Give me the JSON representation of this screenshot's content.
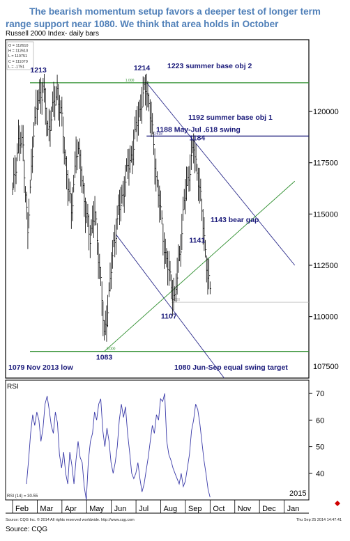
{
  "headline": {
    "line1": "The bearish momentum setup favors a deeper test of longer term",
    "line2": "range support near 1080. We think that area holds in October"
  },
  "subtitle": "Russell 2000 Index- daily bars",
  "footer": {
    "copyright": "Source: CQG Inc. © 2014 All rights reserved worldwide. http://www.cqg.com",
    "timestamp": "Thu Sep 25 2014 14:47:41",
    "source": "Source: CQG"
  },
  "colors": {
    "bars": "#000000",
    "trendline": "#2a2a8a",
    "channel": "#2f8f2f",
    "annotation": "#1a1a7a",
    "rsi": "#3a3aa8"
  },
  "chart_data": [
    {
      "type": "bar",
      "title": "Russell 2000 Index- daily bars",
      "x_categories": [
        "Feb",
        "Mar",
        "Apr",
        "May",
        "Jun",
        "Jul",
        "Aug",
        "Sep",
        "Oct",
        "Nov",
        "Dec",
        "Jan"
      ],
      "x_extra_label": "2015",
      "ylim": [
        1070,
        1235
      ],
      "y_ticks": [
        1100,
        1125,
        1150,
        1175,
        1200
      ],
      "y_tick_labels": [
        "110000",
        "112500",
        "115000",
        "117500",
        "120000"
      ],
      "y_bottom_label": "107500",
      "legend_box": [
        "O = 112610",
        "H = 112610",
        "L = 110751",
        "C = 111070",
        "L = -1751"
      ],
      "price_path": [
        {
          "d": 0,
          "p": 1160
        },
        {
          "d": 3,
          "p": 1175
        },
        {
          "d": 5,
          "p": 1185
        },
        {
          "d": 9,
          "p": 1183
        },
        {
          "d": 13,
          "p": 1140
        },
        {
          "d": 18,
          "p": 1192
        },
        {
          "d": 22,
          "p": 1205
        },
        {
          "d": 26,
          "p": 1212
        },
        {
          "d": 30,
          "p": 1190
        },
        {
          "d": 34,
          "p": 1200
        },
        {
          "d": 38,
          "p": 1210
        },
        {
          "d": 42,
          "p": 1195
        },
        {
          "d": 46,
          "p": 1170
        },
        {
          "d": 50,
          "p": 1150
        },
        {
          "d": 54,
          "p": 1180
        },
        {
          "d": 58,
          "p": 1175
        },
        {
          "d": 62,
          "p": 1150
        },
        {
          "d": 66,
          "p": 1140
        },
        {
          "d": 70,
          "p": 1150
        },
        {
          "d": 74,
          "p": 1125
        },
        {
          "d": 78,
          "p": 1090
        },
        {
          "d": 82,
          "p": 1110
        },
        {
          "d": 86,
          "p": 1135
        },
        {
          "d": 90,
          "p": 1150
        },
        {
          "d": 94,
          "p": 1160
        },
        {
          "d": 98,
          "p": 1172
        },
        {
          "d": 102,
          "p": 1180
        },
        {
          "d": 106,
          "p": 1195
        },
        {
          "d": 110,
          "p": 1205
        },
        {
          "d": 114,
          "p": 1212
        },
        {
          "d": 118,
          "p": 1195
        },
        {
          "d": 122,
          "p": 1170
        },
        {
          "d": 126,
          "p": 1150
        },
        {
          "d": 130,
          "p": 1130
        },
        {
          "d": 134,
          "p": 1118
        },
        {
          "d": 138,
          "p": 1108
        },
        {
          "d": 142,
          "p": 1130
        },
        {
          "d": 146,
          "p": 1155
        },
        {
          "d": 150,
          "p": 1170
        },
        {
          "d": 154,
          "p": 1182
        },
        {
          "d": 158,
          "p": 1168
        },
        {
          "d": 162,
          "p": 1145
        },
        {
          "d": 166,
          "p": 1120
        },
        {
          "d": 168,
          "p": 1111
        }
      ],
      "horizontal_levels": [
        {
          "value": 1214,
          "label": "1.000",
          "color": "#2f8f2f"
        },
        {
          "value": 1188,
          "label": "0.618",
          "color": "#1a1a7a"
        },
        {
          "value": 1107,
          "label": "0.000",
          "color": "#aaaaaa"
        },
        {
          "value": 1083,
          "label": "0.000",
          "color": "#2f8f2f"
        }
      ],
      "trendlines": [
        {
          "name": "upper-downtrend",
          "from": {
            "d": 114,
            "p": 1214
          },
          "to": {
            "d": 240,
            "p": 1125
          },
          "color": "#2a2a8a"
        },
        {
          "name": "lower-downtrend",
          "from": {
            "d": 88,
            "p": 1140
          },
          "to": {
            "d": 180,
            "p": 1070
          },
          "color": "#2a2a8a"
        },
        {
          "name": "rising-support",
          "from": {
            "d": 78,
            "p": 1083
          },
          "to": {
            "d": 240,
            "p": 1166
          },
          "color": "#2f8f2f"
        }
      ],
      "annotations": [
        {
          "text": "1213",
          "d": 22,
          "p": 1219
        },
        {
          "text": "1214",
          "d": 110,
          "p": 1220
        },
        {
          "text": "1223 summer base obj 2",
          "d": 135,
          "p": 1221
        },
        {
          "text": "1192 summer base obj 1",
          "d": 150,
          "p": 1196
        },
        {
          "text": "1188 May-Jul .618 swing",
          "d": 120,
          "p": 1190
        },
        {
          "text": "1184",
          "d": 157,
          "p": 1186
        },
        {
          "text": "1143 bear gap",
          "d": 170,
          "p": 1146
        },
        {
          "text": "1141",
          "d": 157,
          "p": 1136
        },
        {
          "text": "1107",
          "d": 133,
          "p": 1099
        },
        {
          "text": "1083",
          "d": 78,
          "p": 1079
        },
        {
          "text": "1079 Nov 2013 low",
          "d": 0,
          "p": 1074
        },
        {
          "text": "1080 Jun-Sep equal swing target",
          "d": 132,
          "p": 1074
        }
      ]
    },
    {
      "type": "line",
      "title": "RSI",
      "ylim": [
        30,
        75
      ],
      "y_ticks": [
        40,
        50,
        60,
        70
      ],
      "readout": "RSI (14) = 30.55",
      "values": [
        36,
        45,
        55,
        62,
        58,
        63,
        60,
        52,
        57,
        66,
        69,
        64,
        58,
        55,
        63,
        59,
        47,
        42,
        48,
        40,
        36,
        48,
        43,
        36,
        45,
        52,
        46,
        44,
        35,
        30,
        45,
        52,
        55,
        63,
        60,
        66,
        68,
        56,
        50,
        57,
        52,
        44,
        40,
        44,
        50,
        60,
        66,
        61,
        65,
        55,
        48,
        40,
        38,
        40,
        44,
        38,
        33,
        36,
        41,
        46,
        52,
        58,
        55,
        62,
        60,
        68,
        67,
        70,
        52,
        47,
        45,
        42,
        40,
        38,
        36,
        40,
        35,
        37,
        42,
        47,
        56,
        60,
        66,
        64,
        59,
        52,
        45,
        40,
        34,
        31
      ]
    }
  ]
}
